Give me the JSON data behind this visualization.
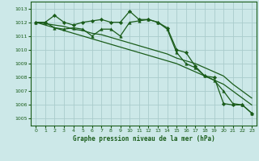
{
  "title": "Graphe pression niveau de la mer (hPa)",
  "bg_color": "#cce8e8",
  "grid_color": "#aacccc",
  "line_color": "#1a5c1a",
  "label_color": "#1a5c1a",
  "xlim": [
    -0.5,
    23.5
  ],
  "ylim": [
    1004.5,
    1013.5
  ],
  "yticks": [
    1005,
    1006,
    1007,
    1008,
    1009,
    1010,
    1011,
    1012,
    1013
  ],
  "xticks": [
    0,
    1,
    2,
    3,
    4,
    5,
    6,
    7,
    8,
    9,
    10,
    11,
    12,
    13,
    14,
    15,
    16,
    17,
    18,
    19,
    20,
    21,
    22,
    23
  ],
  "series": [
    {
      "x": [
        0,
        1,
        2,
        3,
        4,
        5,
        6,
        7,
        8,
        9,
        10,
        11,
        12,
        13,
        14,
        15,
        16,
        17,
        18,
        19,
        20,
        21,
        22,
        23
      ],
      "y": [
        1012.0,
        1012.0,
        1012.5,
        1012.0,
        1011.8,
        1012.0,
        1012.1,
        1012.2,
        1012.0,
        1012.0,
        1012.8,
        1012.2,
        1012.2,
        1012.0,
        1011.6,
        1010.0,
        1009.8,
        1008.8,
        1008.1,
        1008.0,
        1006.1,
        1006.0,
        1006.0,
        1005.4
      ],
      "marker": "D",
      "markersize": 2.2,
      "linewidth": 0.9
    },
    {
      "x": [
        0,
        1,
        2,
        3,
        4,
        5,
        6,
        7,
        8,
        9,
        10,
        11,
        12,
        13,
        14,
        15,
        16,
        17,
        18,
        19,
        20,
        21,
        22,
        23
      ],
      "y": [
        1012.0,
        1012.0,
        1011.6,
        1011.5,
        1011.6,
        1011.5,
        1011.0,
        1011.5,
        1011.5,
        1011.0,
        1012.0,
        1012.1,
        1012.2,
        1012.0,
        1011.5,
        1009.8,
        1009.0,
        1008.7,
        1008.1,
        1007.8,
        1007.0,
        1006.1,
        1006.0,
        1005.4
      ],
      "marker": "^",
      "markersize": 2.5,
      "linewidth": 0.9
    },
    {
      "x": [
        0,
        1,
        2,
        3,
        4,
        5,
        6,
        7,
        8,
        9,
        10,
        11,
        12,
        13,
        14,
        15,
        16,
        17,
        18,
        19,
        20,
        21,
        22,
        23
      ],
      "y": [
        1012.0,
        1011.9,
        1011.8,
        1011.7,
        1011.5,
        1011.4,
        1011.2,
        1011.1,
        1010.9,
        1010.7,
        1010.5,
        1010.3,
        1010.1,
        1009.9,
        1009.7,
        1009.4,
        1009.2,
        1009.0,
        1008.7,
        1008.4,
        1008.1,
        1007.5,
        1007.0,
        1006.5
      ],
      "marker": null,
      "markersize": 0,
      "linewidth": 0.9
    },
    {
      "x": [
        0,
        1,
        2,
        3,
        4,
        5,
        6,
        7,
        8,
        9,
        10,
        11,
        12,
        13,
        14,
        15,
        16,
        17,
        18,
        19,
        20,
        21,
        22,
        23
      ],
      "y": [
        1012.0,
        1011.8,
        1011.6,
        1011.4,
        1011.2,
        1011.0,
        1010.8,
        1010.6,
        1010.4,
        1010.2,
        1010.0,
        1009.8,
        1009.6,
        1009.4,
        1009.2,
        1009.0,
        1008.7,
        1008.4,
        1008.1,
        1007.8,
        1007.5,
        1007.0,
        1006.5,
        1006.0
      ],
      "marker": null,
      "markersize": 0,
      "linewidth": 0.9
    }
  ]
}
